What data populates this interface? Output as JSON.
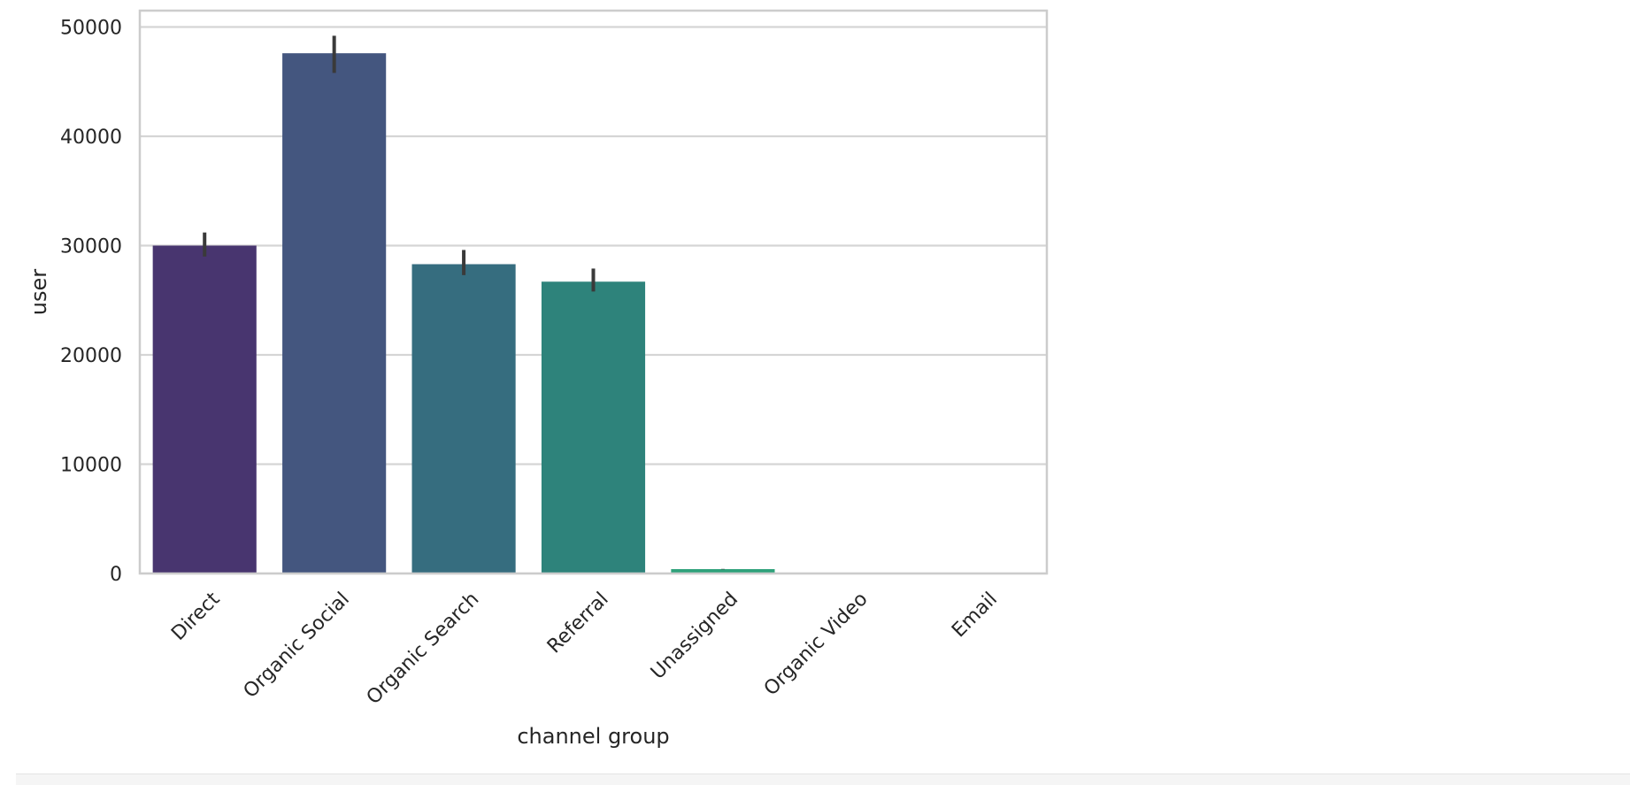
{
  "chart_data": {
    "type": "bar",
    "title": "",
    "xlabel": "channel group",
    "ylabel": "user",
    "categories": [
      "Direct",
      "Organic Social",
      "Organic Search",
      "Referral",
      "Unassigned",
      "Organic Video",
      "Email"
    ],
    "values": [
      30000,
      47600,
      28300,
      26700,
      400,
      10,
      5
    ],
    "error_bars": [
      [
        29000,
        31200
      ],
      [
        45800,
        49200
      ],
      [
        27300,
        29600
      ],
      [
        25800,
        27900
      ],
      [
        380,
        420
      ],
      [
        8,
        12
      ],
      [
        4,
        6
      ]
    ],
    "colors": [
      "#48356f",
      "#44567f",
      "#366d7f",
      "#2e837b",
      "#2ea17a",
      "#5bb86a",
      "#a0d04c"
    ],
    "error_color": "#3a3a3a",
    "ylim": [
      0,
      51500
    ],
    "yticks": [
      0,
      10000,
      20000,
      30000,
      40000,
      50000
    ],
    "grid": true
  }
}
